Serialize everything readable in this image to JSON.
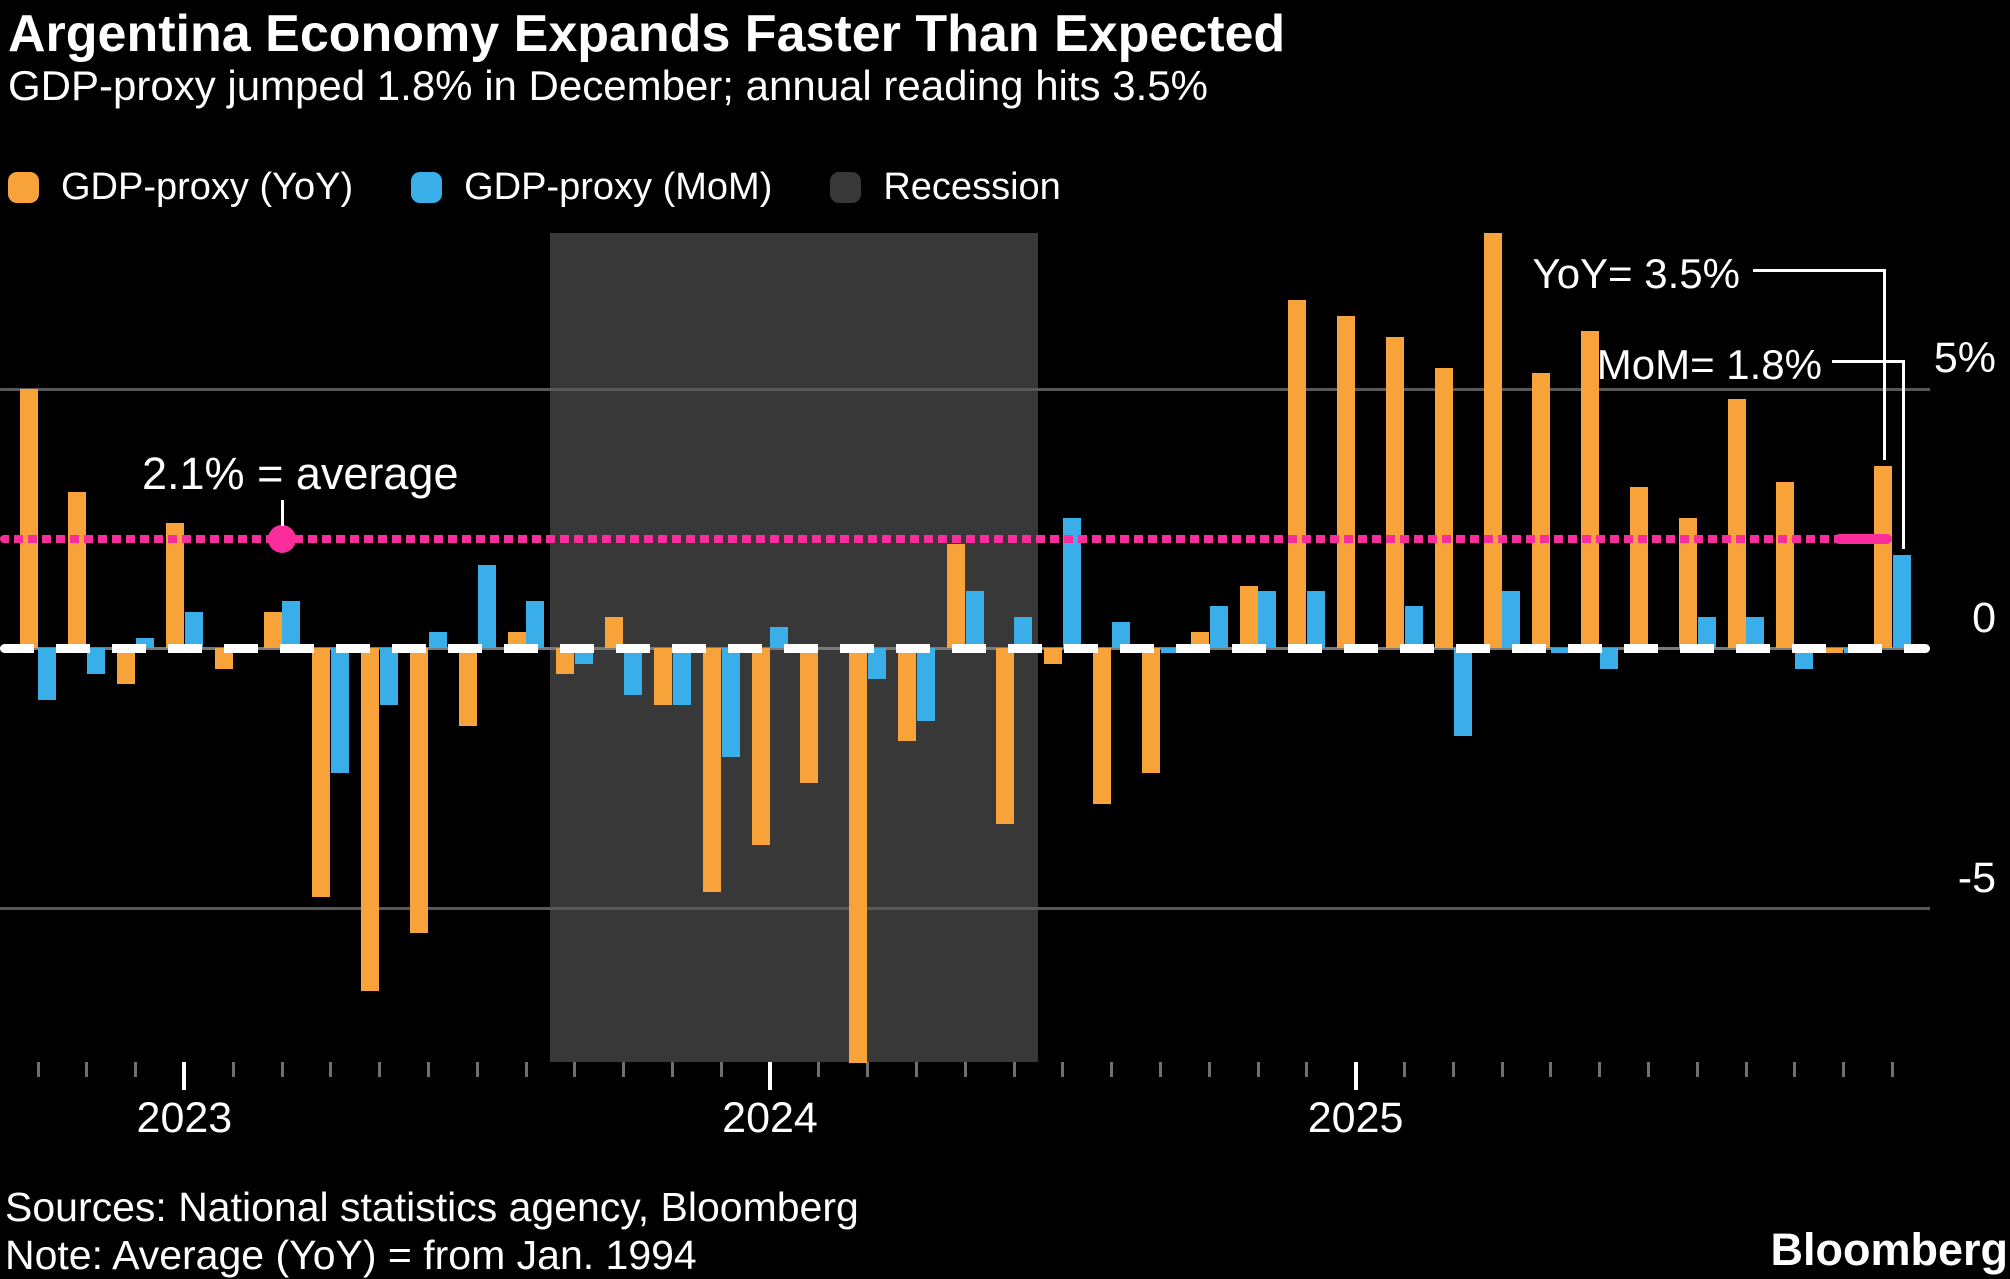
{
  "header": {
    "title": "Argentina Economy Expands Faster Than Expected",
    "subtitle": "GDP-proxy jumped 1.8% in December; annual reading hits 3.5%"
  },
  "legend": {
    "yoy_label": "GDP-proxy (YoY)",
    "mom_label": "GDP-proxy (MoM)",
    "recession_label": "Recession"
  },
  "annotations": {
    "average_label": "2.1% = average",
    "yoy_callout": "YoY= 3.5%",
    "mom_callout": "MoM= 1.8%"
  },
  "axis": {
    "y_ticks": [
      "5%",
      "0",
      "-5"
    ],
    "x_ticks": [
      "2023",
      "2024",
      "2025"
    ]
  },
  "footer": {
    "sources": "Sources: National statistics agency, Bloomberg",
    "note": "Note: Average (YoY) = from Jan. 1994",
    "brand": "Bloomberg"
  },
  "colors": {
    "yoy_orange": "#F8A23A",
    "mom_blue": "#3AAEE9",
    "recession_gray": "#383838",
    "average_pink": "#FB2D9D",
    "gridline_gray": "#585858",
    "zero_line_gray": "#7a7a7a",
    "month_tick_gray": "#6f6f6f",
    "background": "#000000"
  },
  "chart_data": {
    "type": "bar",
    "title": "Argentina Economy Expands Faster Than Expected",
    "ylabel": "",
    "xlabel": "",
    "ylim": [
      -8.2,
      8.2
    ],
    "y_gridlines": [
      5,
      0,
      -5
    ],
    "grid": "horizontal",
    "legend_position": "top-left",
    "months": [
      "Oct 2022",
      "Nov 2022",
      "Dec 2022",
      "Jan 2023",
      "Feb 2023",
      "Mar 2023",
      "Apr 2023",
      "May 2023",
      "Jun 2023",
      "Jul 2023",
      "Aug 2023",
      "Sep 2023",
      "Oct 2023",
      "Nov 2023",
      "Dec 2023",
      "Jan 2024",
      "Feb 2024",
      "Mar 2024",
      "Apr 2024",
      "May 2024",
      "Jun 2024",
      "Jul 2024",
      "Aug 2024",
      "Sep 2024",
      "Oct 2024",
      "Nov 2024",
      "Dec 2024",
      "Jan 2025",
      "Feb 2025",
      "Mar 2025",
      "Apr 2025",
      "May 2025",
      "Jun 2025",
      "Jul 2025",
      "Aug 2025",
      "Sep 2025",
      "Oct 2025",
      "Nov 2025",
      "Dec 2025"
    ],
    "series": [
      {
        "name": "GDP-proxy (YoY)",
        "color": "#F8A23A",
        "values": [
          5.0,
          3.0,
          -0.7,
          2.4,
          -0.4,
          0.7,
          -4.8,
          -6.6,
          -5.5,
          -1.5,
          0.3,
          -0.5,
          0.6,
          -1.1,
          -4.7,
          -3.8,
          -2.6,
          -8.0,
          -1.8,
          2.0,
          -3.4,
          -0.3,
          -3.0,
          -2.4,
          0.3,
          1.2,
          6.7,
          6.4,
          6.0,
          5.4,
          8.0,
          5.3,
          6.1,
          3.1,
          2.5,
          4.8,
          3.2,
          -0.1,
          3.5
        ]
      },
      {
        "name": "GDP-proxy (MoM)",
        "color": "#3AAEE9",
        "values": [
          -1.0,
          -0.5,
          0.2,
          0.7,
          0.0,
          0.9,
          -2.4,
          -1.1,
          0.3,
          1.6,
          0.9,
          -0.3,
          -0.9,
          -1.1,
          -2.1,
          0.4,
          0.0,
          -0.6,
          -1.4,
          1.1,
          0.6,
          2.5,
          0.5,
          -0.1,
          0.8,
          1.1,
          1.1,
          -0.1,
          0.8,
          -1.7,
          1.1,
          -0.1,
          -0.4,
          0.0,
          0.6,
          0.6,
          -0.4,
          -0.1,
          1.8
        ]
      }
    ],
    "average_line": {
      "value": 2.1,
      "label": "2.1% = average",
      "style": "dotted",
      "marker_month": "Mar 2023"
    },
    "recession_band": {
      "start": "Sep 2023",
      "end": "Jun 2024"
    },
    "callouts": [
      {
        "label": "YoY= 3.5%",
        "month": "Dec 2025",
        "series": "GDP-proxy (YoY)",
        "value": 3.5
      },
      {
        "label": "MoM= 1.8%",
        "month": "Dec 2025",
        "series": "GDP-proxy (MoM)",
        "value": 1.8
      }
    ],
    "x_year_ticks": [
      {
        "label": "2023",
        "month": "Jan 2023"
      },
      {
        "label": "2024",
        "month": "Jan 2024"
      },
      {
        "label": "2025",
        "month": "Jan 2025"
      }
    ]
  }
}
